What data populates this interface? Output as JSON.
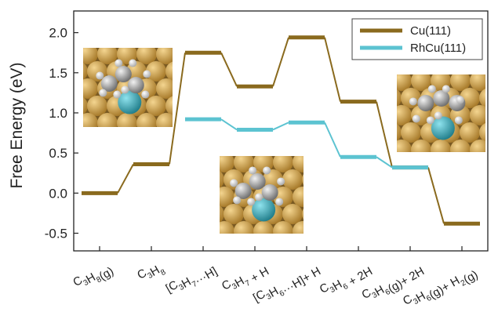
{
  "chart_data": {
    "type": "line",
    "title": "",
    "xlabel": "",
    "ylabel": "Free Energy (eV)",
    "ylim": [
      -0.72,
      2.27
    ],
    "yticks": [
      "2.0",
      "1.5",
      "1.0",
      "0.5",
      "0.0",
      "-0.5"
    ],
    "ytick_values": [
      2.0,
      1.5,
      1.0,
      0.5,
      0.0,
      -0.5
    ],
    "categories": [
      "C3H8(g)",
      "C3H8",
      "[C3H7···H]",
      "C3H7 + H",
      "[C3H6···H]+ H",
      "C3H6 + 2H",
      "C3H6(g)+ 2H",
      "C3H6(g)+ H2(g)"
    ],
    "category_labels": [
      [
        {
          "t": "C"
        },
        {
          "t": "3",
          "sub": true
        },
        {
          "t": "H"
        },
        {
          "t": "8",
          "sub": true
        },
        {
          "t": "(g)"
        }
      ],
      [
        {
          "t": "C"
        },
        {
          "t": "3",
          "sub": true
        },
        {
          "t": "H"
        },
        {
          "t": "8",
          "sub": true
        }
      ],
      [
        {
          "t": "[C"
        },
        {
          "t": "3",
          "sub": true
        },
        {
          "t": "H"
        },
        {
          "t": "7",
          "sub": true
        },
        {
          "t": "···H]"
        }
      ],
      [
        {
          "t": "C"
        },
        {
          "t": "3",
          "sub": true
        },
        {
          "t": "H"
        },
        {
          "t": "7",
          "sub": true
        },
        {
          "t": " + H"
        }
      ],
      [
        {
          "t": "[C"
        },
        {
          "t": "3",
          "sub": true
        },
        {
          "t": "H"
        },
        {
          "t": "6",
          "sub": true
        },
        {
          "t": "···H]+ H"
        }
      ],
      [
        {
          "t": "C"
        },
        {
          "t": "3",
          "sub": true
        },
        {
          "t": "H"
        },
        {
          "t": "6",
          "sub": true
        },
        {
          "t": " + 2H"
        }
      ],
      [
        {
          "t": "C"
        },
        {
          "t": "3",
          "sub": true
        },
        {
          "t": "H"
        },
        {
          "t": "6",
          "sub": true
        },
        {
          "t": "(g)+ 2H"
        }
      ],
      [
        {
          "t": "C"
        },
        {
          "t": "3",
          "sub": true
        },
        {
          "t": "H"
        },
        {
          "t": "6",
          "sub": true
        },
        {
          "t": "(g)+ H"
        },
        {
          "t": "2",
          "sub": true
        },
        {
          "t": "(g)"
        }
      ]
    ],
    "series": [
      {
        "name": "Cu(111)",
        "color": "#8a6a1e",
        "values": [
          0.0,
          0.36,
          1.75,
          1.33,
          1.94,
          1.14,
          0.32,
          -0.38
        ]
      },
      {
        "name": "RhCu(111)",
        "color": "#5cc3d1",
        "values": [
          null,
          null,
          0.92,
          0.79,
          0.88,
          0.45,
          0.32,
          null
        ]
      }
    ],
    "legend_position": "top-right",
    "grid": false,
    "insets": [
      {
        "name": "inset-structure-c3h8",
        "icon": "molecular-structure-image"
      },
      {
        "name": "inset-structure-c3h7-h",
        "icon": "molecular-structure-image"
      },
      {
        "name": "inset-structure-c3h6-h",
        "icon": "molecular-structure-image"
      }
    ]
  }
}
